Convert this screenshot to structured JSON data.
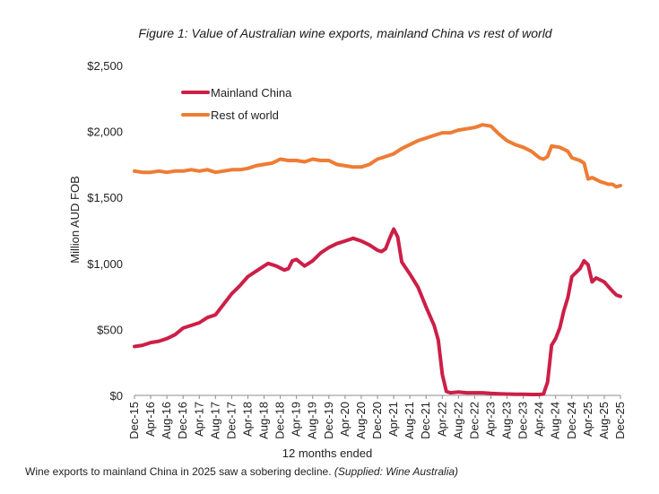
{
  "chart_data": {
    "type": "line",
    "title": "Figure 1: Value of Australian wine exports, mainland China vs rest of world",
    "xlabel": "12 months ended",
    "ylabel": "Million AUD FOB",
    "ylim": [
      0,
      2500
    ],
    "yticks": [
      "$0",
      "$500",
      "$1,000",
      "$1,500",
      "$2,000",
      "$2,500"
    ],
    "ytick_values": [
      0,
      500,
      1000,
      1500,
      2000,
      2500
    ],
    "xtick_labels": [
      "Dec-15",
      "Apr-16",
      "Aug-16",
      "Dec-16",
      "Apr-17",
      "Aug-17",
      "Dec-17",
      "Apr-18",
      "Aug-18",
      "Dec-18",
      "Apr-19",
      "Aug-19",
      "Dec-19",
      "Apr-20",
      "Aug-20",
      "Dec-20",
      "Apr-21",
      "Aug-21",
      "Dec-21",
      "Apr-22",
      "Aug-22",
      "Dec-22",
      "Apr-23",
      "Aug-23",
      "Dec-23",
      "Apr-24",
      "Aug-24",
      "Dec-24",
      "Apr-25",
      "Aug-25",
      "Dec-25"
    ],
    "legend_position": "top-left",
    "series": [
      {
        "name": "Mainland China",
        "color": "#cc1f47",
        "values": [
          [
            0,
            370
          ],
          [
            2,
            380
          ],
          [
            4,
            400
          ],
          [
            6,
            410
          ],
          [
            8,
            430
          ],
          [
            10,
            460
          ],
          [
            12,
            510
          ],
          [
            14,
            530
          ],
          [
            16,
            550
          ],
          [
            18,
            590
          ],
          [
            20,
            610
          ],
          [
            22,
            690
          ],
          [
            24,
            770
          ],
          [
            26,
            830
          ],
          [
            28,
            900
          ],
          [
            30,
            940
          ],
          [
            32,
            980
          ],
          [
            33,
            1000
          ],
          [
            35,
            980
          ],
          [
            37,
            950
          ],
          [
            38,
            960
          ],
          [
            39,
            1020
          ],
          [
            40,
            1030
          ],
          [
            42,
            980
          ],
          [
            44,
            1020
          ],
          [
            46,
            1080
          ],
          [
            48,
            1120
          ],
          [
            50,
            1150
          ],
          [
            52,
            1170
          ],
          [
            54,
            1190
          ],
          [
            56,
            1170
          ],
          [
            58,
            1140
          ],
          [
            60,
            1100
          ],
          [
            61,
            1090
          ],
          [
            62,
            1110
          ],
          [
            63,
            1190
          ],
          [
            64,
            1260
          ],
          [
            65,
            1200
          ],
          [
            66,
            1010
          ],
          [
            68,
            920
          ],
          [
            70,
            820
          ],
          [
            72,
            670
          ],
          [
            74,
            530
          ],
          [
            75,
            420
          ],
          [
            76,
            160
          ],
          [
            77,
            30
          ],
          [
            78,
            20
          ],
          [
            80,
            25
          ],
          [
            82,
            20
          ],
          [
            84,
            20
          ],
          [
            86,
            20
          ],
          [
            88,
            15
          ],
          [
            90,
            12
          ],
          [
            92,
            10
          ],
          [
            94,
            8
          ],
          [
            96,
            8
          ],
          [
            98,
            7
          ],
          [
            100,
            7
          ],
          [
            101,
            10
          ],
          [
            102,
            100
          ],
          [
            103,
            380
          ],
          [
            104,
            430
          ],
          [
            105,
            510
          ],
          [
            106,
            640
          ],
          [
            107,
            740
          ],
          [
            108,
            900
          ],
          [
            110,
            960
          ],
          [
            111,
            1020
          ],
          [
            112,
            990
          ],
          [
            113,
            860
          ],
          [
            114,
            890
          ],
          [
            116,
            860
          ],
          [
            118,
            790
          ],
          [
            119,
            760
          ],
          [
            120,
            750
          ]
        ]
      },
      {
        "name": "Rest of world",
        "color": "#ee7c34",
        "values": [
          [
            0,
            1700
          ],
          [
            2,
            1690
          ],
          [
            4,
            1690
          ],
          [
            6,
            1700
          ],
          [
            8,
            1690
          ],
          [
            10,
            1700
          ],
          [
            12,
            1700
          ],
          [
            14,
            1710
          ],
          [
            16,
            1700
          ],
          [
            18,
            1710
          ],
          [
            20,
            1690
          ],
          [
            22,
            1700
          ],
          [
            24,
            1710
          ],
          [
            26,
            1710
          ],
          [
            28,
            1720
          ],
          [
            30,
            1740
          ],
          [
            32,
            1750
          ],
          [
            34,
            1760
          ],
          [
            36,
            1790
          ],
          [
            38,
            1780
          ],
          [
            40,
            1780
          ],
          [
            42,
            1770
          ],
          [
            44,
            1790
          ],
          [
            46,
            1780
          ],
          [
            48,
            1780
          ],
          [
            50,
            1750
          ],
          [
            52,
            1740
          ],
          [
            54,
            1730
          ],
          [
            56,
            1730
          ],
          [
            58,
            1750
          ],
          [
            60,
            1790
          ],
          [
            62,
            1810
          ],
          [
            64,
            1830
          ],
          [
            66,
            1870
          ],
          [
            68,
            1900
          ],
          [
            70,
            1930
          ],
          [
            72,
            1950
          ],
          [
            74,
            1970
          ],
          [
            76,
            1990
          ],
          [
            78,
            1990
          ],
          [
            80,
            2010
          ],
          [
            82,
            2020
          ],
          [
            84,
            2030
          ],
          [
            86,
            2050
          ],
          [
            88,
            2040
          ],
          [
            90,
            1980
          ],
          [
            92,
            1930
          ],
          [
            94,
            1900
          ],
          [
            96,
            1880
          ],
          [
            98,
            1850
          ],
          [
            100,
            1800
          ],
          [
            101,
            1790
          ],
          [
            102,
            1810
          ],
          [
            103,
            1890
          ],
          [
            105,
            1880
          ],
          [
            107,
            1850
          ],
          [
            108,
            1800
          ],
          [
            110,
            1780
          ],
          [
            111,
            1760
          ],
          [
            112,
            1640
          ],
          [
            113,
            1650
          ],
          [
            115,
            1620
          ],
          [
            117,
            1600
          ],
          [
            118,
            1600
          ],
          [
            119,
            1580
          ],
          [
            120,
            1590
          ]
        ]
      }
    ]
  },
  "caption": {
    "text": "Wine exports to mainland China in 2025 saw a sobering decline.",
    "credit": "(Supplied: Wine Australia)"
  }
}
